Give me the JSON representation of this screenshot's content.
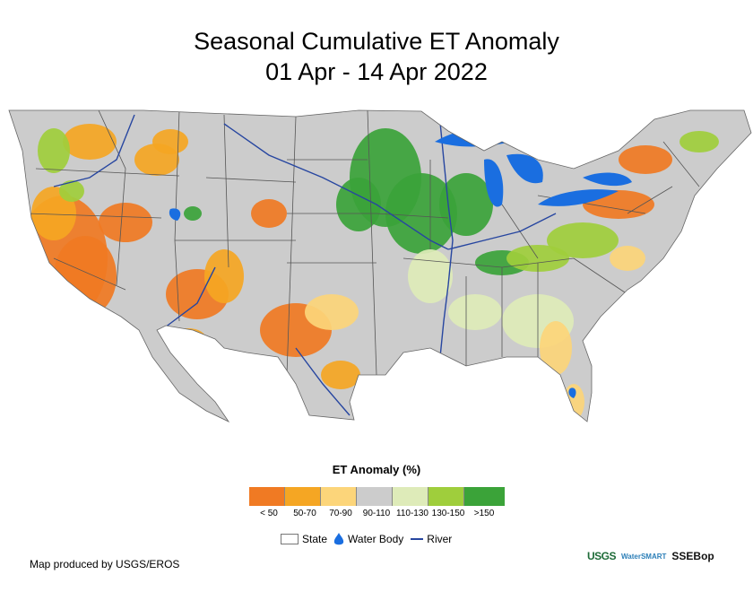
{
  "title": {
    "line1": "Seasonal Cumulative ET Anomaly",
    "line2": "01 Apr - 14 Apr 2022"
  },
  "legend": {
    "title": "ET Anomaly (%)",
    "classes": [
      {
        "label": "< 50",
        "color": "#f07a23"
      },
      {
        "label": "50-70",
        "color": "#f5a623"
      },
      {
        "label": "70-90",
        "color": "#fcd57a"
      },
      {
        "label": "90-110",
        "color": "#cccccc"
      },
      {
        "label": "110-130",
        "color": "#deebb9"
      },
      {
        "label": "130-150",
        "color": "#9fce3c"
      },
      {
        "label": ">150",
        "color": "#3ba339"
      }
    ],
    "state_label": "State",
    "water_label": "Water Body",
    "river_label": "River"
  },
  "colors": {
    "water": "#1a6ee0",
    "river": "#2746a0",
    "boundary": "#555555"
  },
  "credit": "Map produced by USGS/EROS",
  "logos": {
    "usgs": "USGS",
    "smart": "WaterSMART",
    "ssebop": "SSEBop"
  }
}
